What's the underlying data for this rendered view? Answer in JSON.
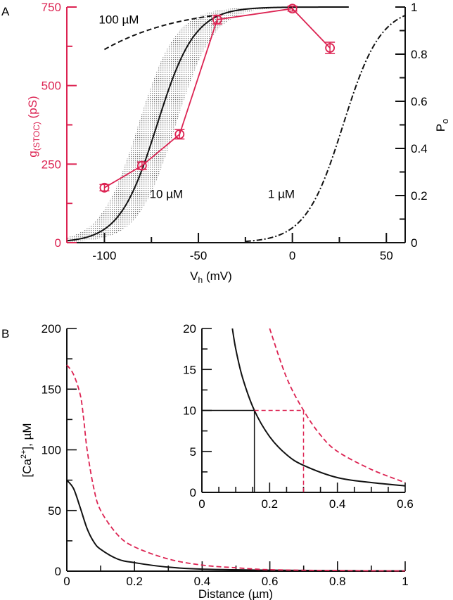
{
  "colors": {
    "red": "#dc2352",
    "black": "#111111",
    "band": "#9a9a9a"
  },
  "chart_data": [
    {
      "panel": "A",
      "type": "line",
      "xlabel": "V",
      "xlabel_sub": "h",
      "xlabel_unit": " (mV)",
      "ylabel": "g",
      "ylabel_sub": "(STOC)",
      "ylabel_unit": " (pS)",
      "y2label": "P",
      "y2label_sub": "o",
      "xlim": [
        -120,
        60
      ],
      "ylim": [
        0,
        750
      ],
      "y2lim": [
        0,
        1
      ],
      "xticks": [
        -100,
        -50,
        0,
        50
      ],
      "yticks": [
        0,
        250,
        500,
        750
      ],
      "y2ticks": [
        0,
        0.2,
        0.4,
        0.6,
        0.8,
        1
      ],
      "xtick_labels": [
        "-100",
        "-50",
        "0",
        "50"
      ],
      "ytick_labels": [
        "0",
        "250",
        "500",
        "750"
      ],
      "y2tick_labels": [
        "0",
        "0.2",
        "0.4",
        "0.6",
        "0.8",
        "1"
      ],
      "data_series": {
        "x": [
          -100,
          -80,
          -60,
          -40,
          0,
          20
        ],
        "y": [
          175,
          245,
          345,
          710,
          745,
          620
        ],
        "err": [
          10,
          12,
          15,
          14,
          8,
          18
        ]
      },
      "curves": [
        {
          "label": "100 µM",
          "style": "dashed",
          "v_half": -150,
          "k": 33,
          "x_range": [
            -100,
            -40
          ],
          "label_at": [
            -103,
            0.93
          ]
        },
        {
          "label": "10 µM",
          "style": "solid",
          "v_half": -72,
          "k": 10,
          "x_range": [
            -120,
            30
          ],
          "band": [
            -82,
            -62
          ],
          "label_at": [
            -76,
            0.19
          ]
        },
        {
          "label": "1 µM",
          "style": "dash-dot",
          "v_half": 27,
          "k": 10,
          "x_range": [
            -25,
            60
          ],
          "label_at": [
            -13,
            0.19
          ]
        }
      ]
    },
    {
      "panel": "B",
      "type": "line",
      "xlabel": "Distance (µm)",
      "ylabel": "[Ca",
      "ylabel_sup": "2+",
      "ylabel_unit": "], µM",
      "xlim": [
        0,
        1
      ],
      "ylim": [
        0,
        200
      ],
      "xticks": [
        0,
        0.2,
        0.4,
        0.6,
        0.8,
        1
      ],
      "xtick_labels": [
        "0",
        "0.2",
        "0.4",
        "0.6",
        "0.8",
        "1"
      ],
      "yticks": [
        0,
        50,
        100,
        150,
        200
      ],
      "ytick_labels": [
        "0",
        "50",
        "100",
        "150",
        "200"
      ],
      "series": [
        {
          "style": "solid",
          "color": "black",
          "points": [
            [
              0,
              75
            ],
            [
              0.02,
              68
            ],
            [
              0.04,
              52
            ],
            [
              0.06,
              35
            ],
            [
              0.08,
              24
            ],
            [
              0.1,
              18
            ],
            [
              0.15,
              10
            ],
            [
              0.2,
              7
            ],
            [
              0.3,
              3.3
            ],
            [
              0.4,
              1.7
            ],
            [
              0.6,
              0.8
            ],
            [
              0.8,
              0.4
            ],
            [
              1,
              0.2
            ]
          ]
        },
        {
          "style": "dashed",
          "color": "red",
          "points": [
            [
              0,
              170
            ],
            [
              0.02,
              162
            ],
            [
              0.04,
              145
            ],
            [
              0.05,
              125
            ],
            [
              0.06,
              100
            ],
            [
              0.08,
              68
            ],
            [
              0.1,
              50
            ],
            [
              0.15,
              30
            ],
            [
              0.2,
              20
            ],
            [
              0.3,
              10
            ],
            [
              0.4,
              5
            ],
            [
              0.5,
              2.8
            ],
            [
              0.6,
              1.2
            ],
            [
              0.8,
              0.5
            ],
            [
              1,
              0.2
            ]
          ]
        }
      ],
      "inset": {
        "xlim": [
          0,
          0.6
        ],
        "ylim": [
          0,
          20
        ],
        "xticks": [
          0,
          0.2,
          0.4,
          0.6
        ],
        "xtick_labels": [
          "0",
          "0.2",
          "0.4",
          "0.6"
        ],
        "yticks": [
          0,
          5,
          10,
          15,
          20
        ],
        "ytick_labels": [
          "0",
          "5",
          "10",
          "15",
          "20"
        ],
        "series": [
          {
            "style": "solid",
            "color": "black",
            "points": [
              [
                0.09,
                20
              ],
              [
                0.1,
                17.5
              ],
              [
                0.12,
                14
              ],
              [
                0.155,
                10
              ],
              [
                0.2,
                6.8
              ],
              [
                0.25,
                4.6
              ],
              [
                0.3,
                3.3
              ],
              [
                0.4,
                1.8
              ],
              [
                0.5,
                1.2
              ],
              [
                0.6,
                0.8
              ]
            ]
          },
          {
            "style": "dashed",
            "color": "red",
            "points": [
              [
                0.2,
                20
              ],
              [
                0.25,
                14
              ],
              [
                0.3,
                10
              ],
              [
                0.35,
                7
              ],
              [
                0.4,
                5
              ],
              [
                0.5,
                2.8
              ],
              [
                0.6,
                1.2
              ]
            ]
          }
        ],
        "threshold": 10,
        "crossings": [
          0.155,
          0.3
        ]
      }
    }
  ]
}
